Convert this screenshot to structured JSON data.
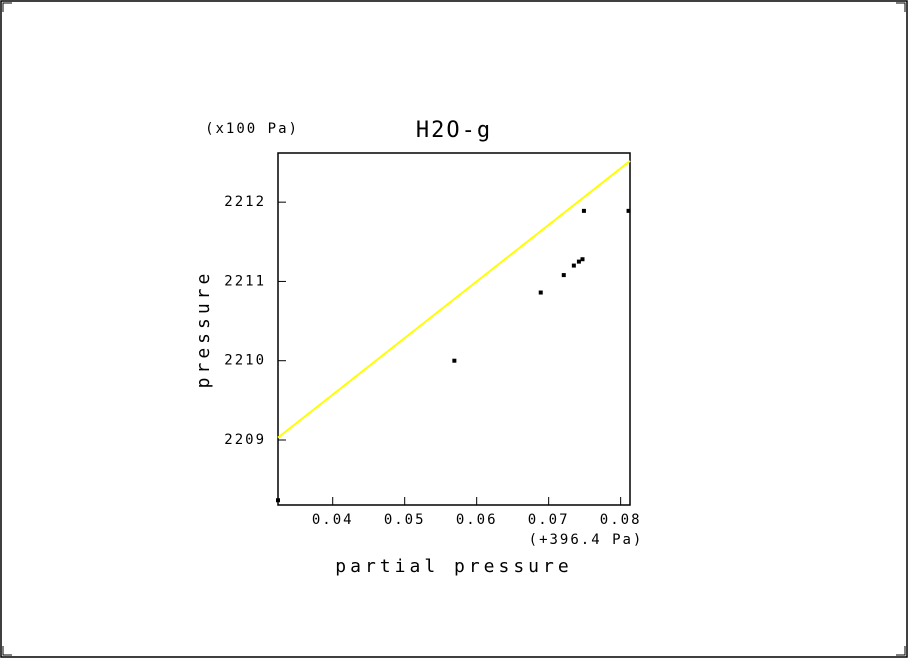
{
  "chart_data": {
    "type": "scatter",
    "title": "H2O-g",
    "y_unit": "(x100 Pa)",
    "x_offset": "(+396.4 Pa)",
    "x_label": "partial pressure",
    "y_label": "pressure",
    "xlim": [
      0.0324,
      0.0813
    ],
    "ylim": [
      2208.18,
      2212.62
    ],
    "xticks": [
      0.04,
      0.05,
      0.06,
      0.07,
      0.08
    ],
    "yticks": [
      2209,
      2210,
      2211,
      2212
    ],
    "series": [
      {
        "type": "line",
        "color": "#ffff00",
        "x": [
          0.0324,
          0.0813
        ],
        "values": [
          2209.03,
          2212.52
        ]
      },
      {
        "type": "scatter",
        "color": "#000000",
        "x": [
          0.0324,
          0.0569,
          0.0689,
          0.0721,
          0.0735,
          0.0742,
          0.0747,
          0.0749,
          0.0811
        ],
        "values": [
          2208.24,
          2210.0,
          2210.86,
          2211.08,
          2211.2,
          2211.25,
          2211.28,
          2211.89,
          2211.89
        ]
      }
    ]
  }
}
